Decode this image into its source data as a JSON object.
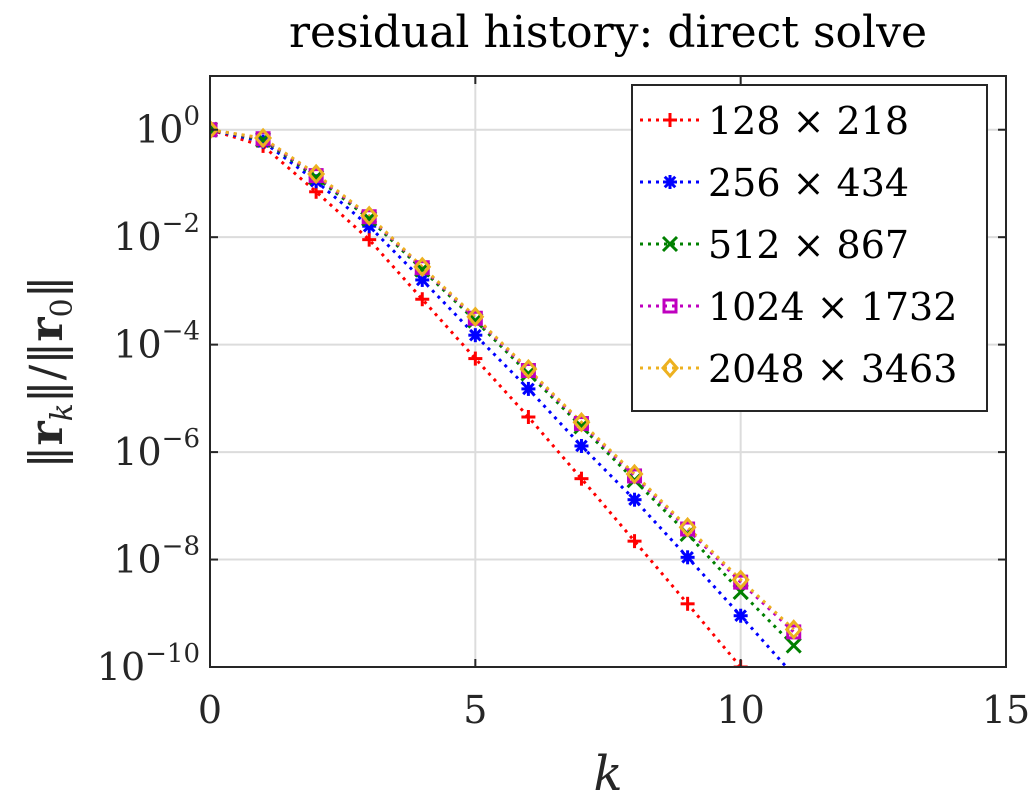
{
  "chart_data": {
    "type": "line",
    "title": "residual history: direct solve",
    "xlabel": "k",
    "ylabel": "||r_k||/||r_0||",
    "yscale": "log",
    "xlim": [
      0,
      15
    ],
    "ylim_exp": [
      -10,
      1
    ],
    "grid": true,
    "legend_placement": "top-right",
    "x_ticks": [
      "0",
      "5",
      "10",
      "15"
    ],
    "y_ticks": [
      {
        "base": "10",
        "exp": "0",
        "value": 0
      },
      {
        "base": "10",
        "exp": "−2",
        "value": -2
      },
      {
        "base": "10",
        "exp": "−4",
        "value": -4
      },
      {
        "base": "10",
        "exp": "−6",
        "value": -6
      },
      {
        "base": "10",
        "exp": "−8",
        "value": -8
      },
      {
        "base": "10",
        "exp": "−10",
        "value": -10
      }
    ],
    "series": [
      {
        "name": "128 × 218",
        "color": "#ff0000",
        "marker": "plus",
        "x": [
          0,
          1,
          2,
          3,
          4,
          5,
          6,
          7,
          8,
          9,
          10
        ],
        "y": [
          1,
          0.5,
          0.07,
          0.009,
          0.0007,
          5.5e-05,
          4.5e-06,
          3.2e-07,
          2.2e-08,
          1.5e-09,
          1e-10
        ]
      },
      {
        "name": "256 × 434",
        "color": "#0000ff",
        "marker": "asterisk",
        "x": [
          0,
          1,
          2,
          3,
          4,
          5,
          6,
          7,
          8,
          9,
          10,
          11
        ],
        "y": [
          1,
          0.6,
          0.11,
          0.016,
          0.0016,
          0.00015,
          1.5e-05,
          1.3e-06,
          1.3e-07,
          1.1e-08,
          9e-10,
          7e-11
        ]
      },
      {
        "name": "512 × 867",
        "color": "#008000",
        "marker": "cross",
        "x": [
          0,
          1,
          2,
          3,
          4,
          5,
          6,
          7,
          8,
          9,
          10,
          11
        ],
        "y": [
          1,
          0.65,
          0.13,
          0.022,
          0.0025,
          0.00028,
          2.9e-05,
          3e-06,
          3e-07,
          3e-08,
          2.5e-09,
          2.5e-10
        ]
      },
      {
        "name": "1024 × 1732",
        "color": "#bf00bf",
        "marker": "square",
        "x": [
          0,
          1,
          2,
          3,
          4,
          5,
          6,
          7,
          8,
          9,
          10,
          11
        ],
        "y": [
          1,
          0.68,
          0.14,
          0.024,
          0.0027,
          0.00031,
          3.3e-05,
          3.4e-06,
          3.6e-07,
          3.7e-08,
          3.8e-09,
          4.5e-10
        ]
      },
      {
        "name": "2048 × 3463",
        "color": "#edb120",
        "marker": "diamond",
        "x": [
          0,
          1,
          2,
          3,
          4,
          5,
          6,
          7,
          8,
          9,
          10,
          11
        ],
        "y": [
          1,
          0.7,
          0.15,
          0.025,
          0.0028,
          0.00033,
          3.5e-05,
          3.6e-06,
          3.9e-07,
          4e-08,
          4.2e-09,
          5e-10
        ]
      }
    ]
  }
}
